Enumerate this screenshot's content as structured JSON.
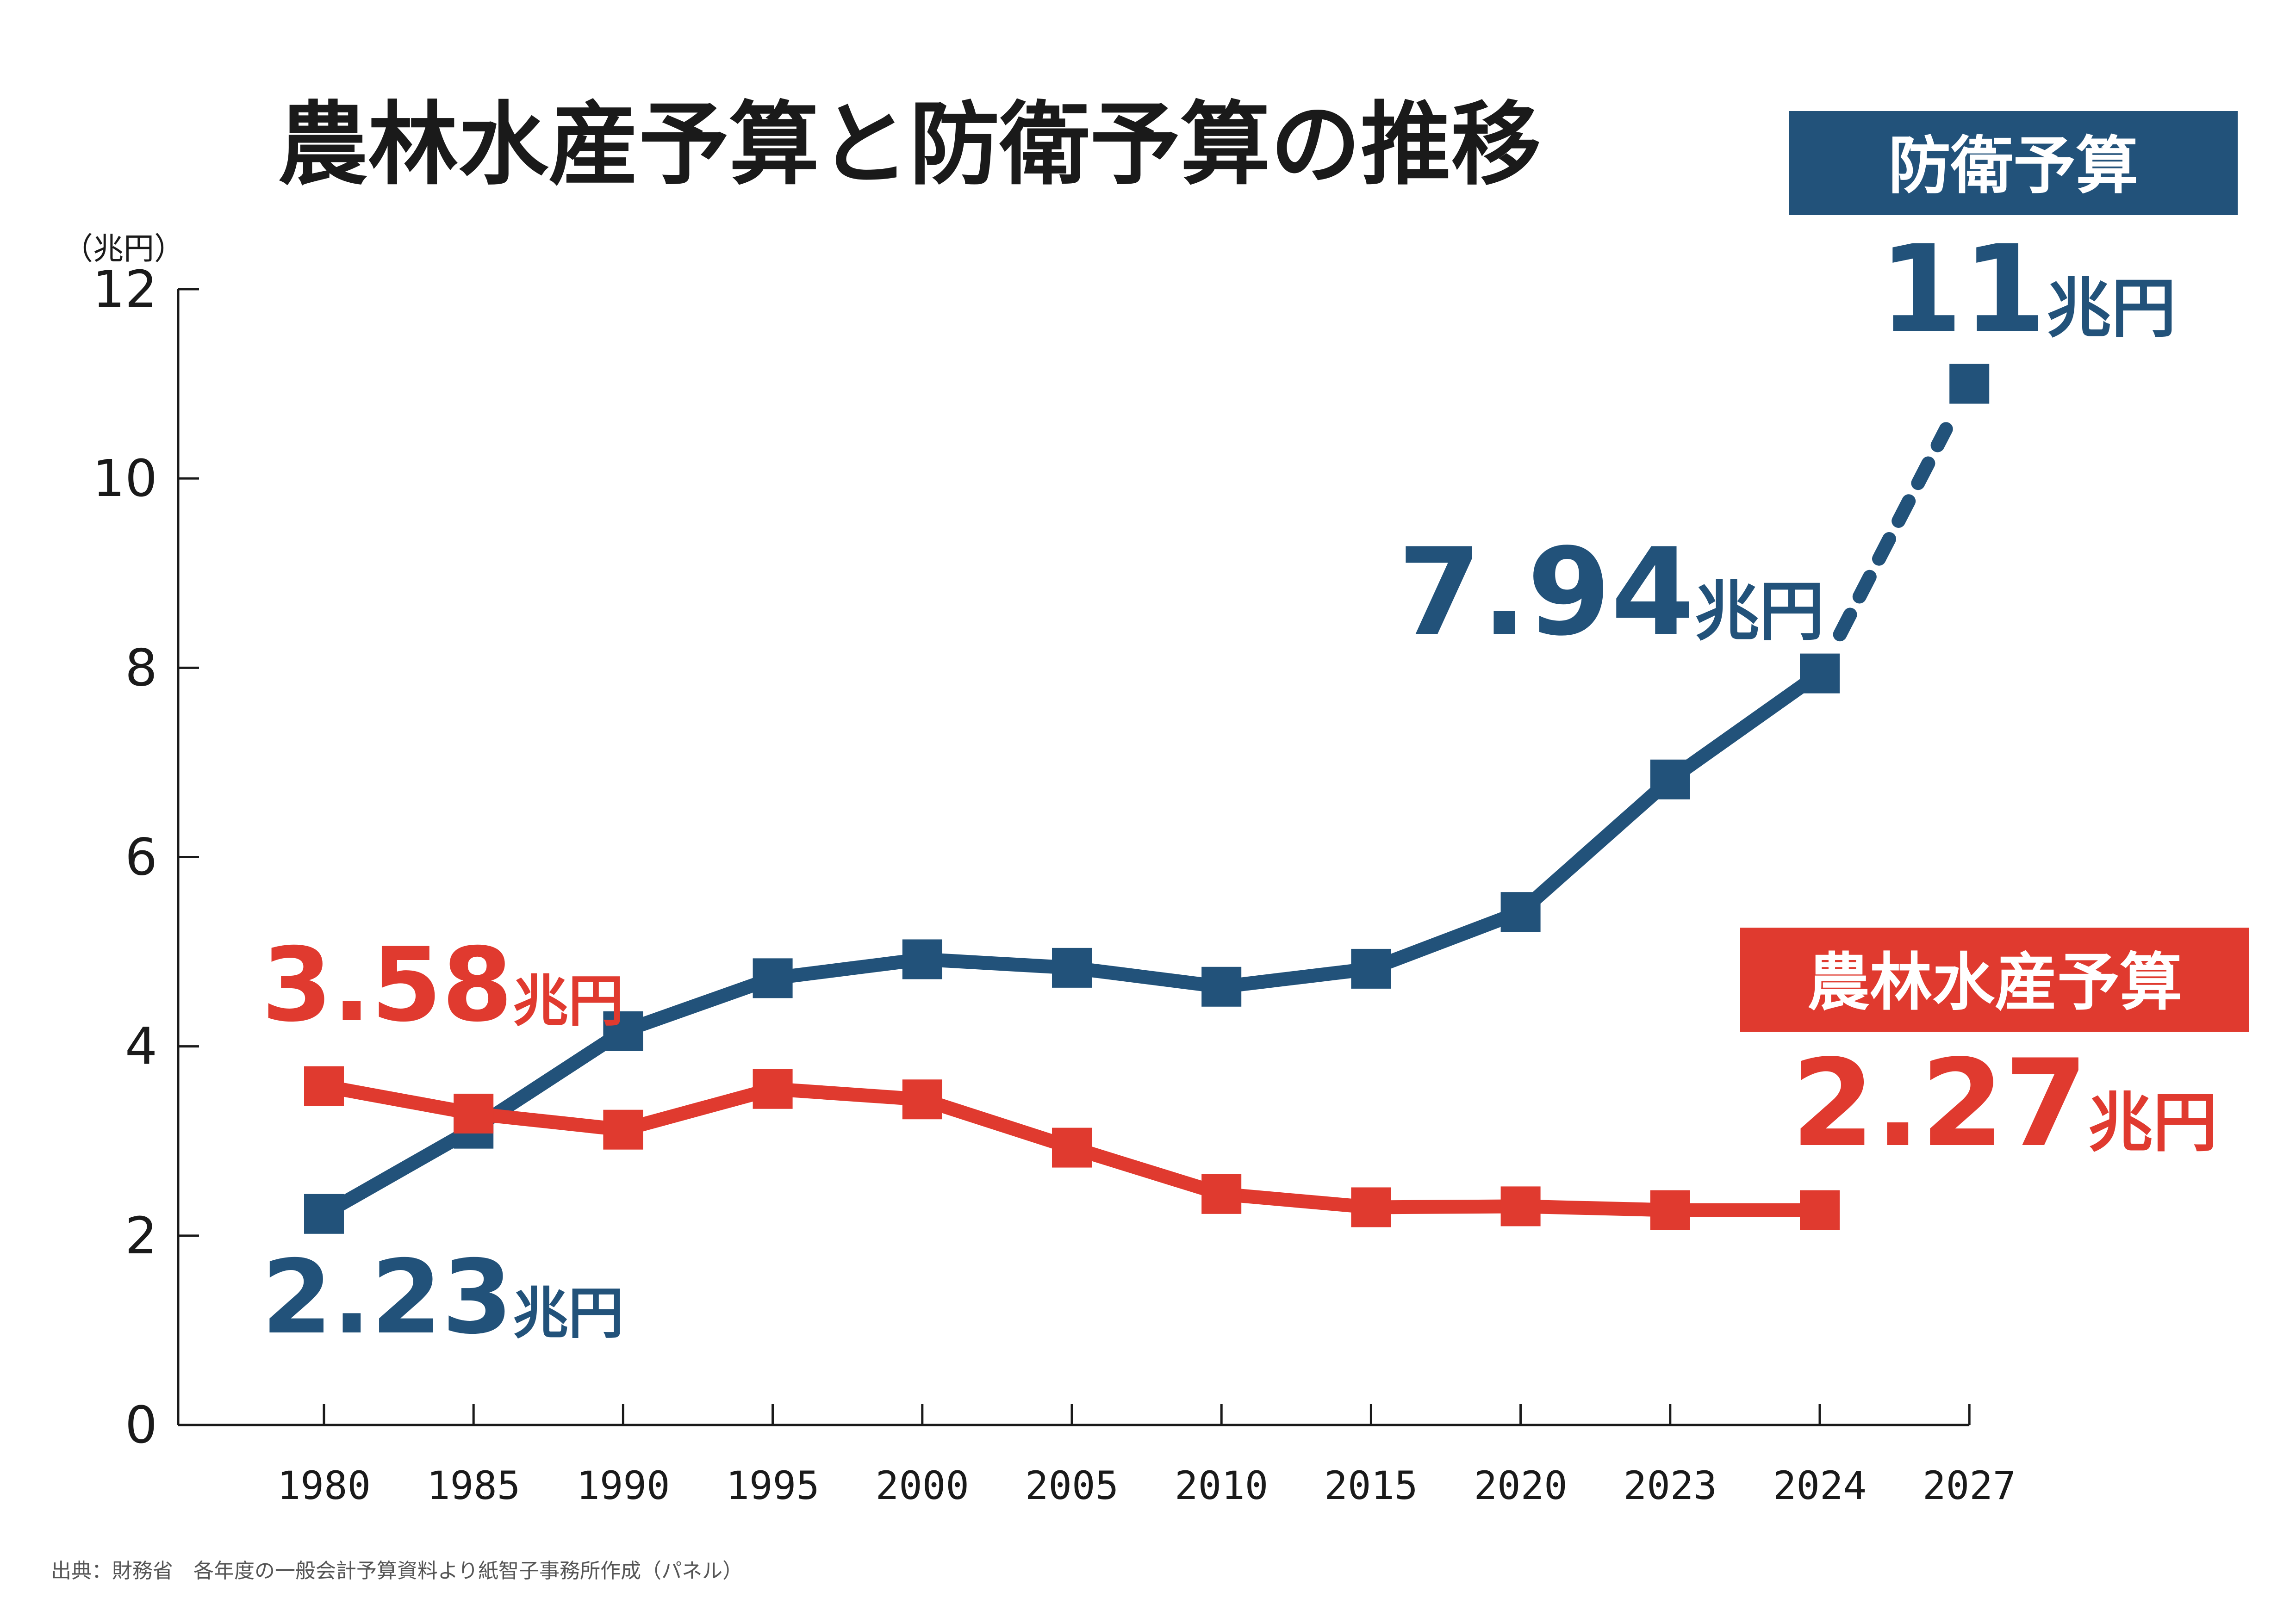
{
  "title": "農林水産予算と防衛予算の推移",
  "unit_label": "（兆円）",
  "source": "出典：財務省　各年度の一般会計予算資料より紙智子事務所作成（パネル）",
  "colors": {
    "defense": "#22527a",
    "agri": "#e03a2f",
    "axis": "#1a1a1a"
  },
  "chart_data": {
    "type": "line",
    "categories": [
      "1980",
      "1985",
      "1990",
      "1995",
      "2000",
      "2005",
      "2010",
      "2015",
      "2020",
      "2023",
      "2024",
      "2027"
    ],
    "ylim": [
      0,
      12
    ],
    "yticks": [
      "0",
      "2",
      "4",
      "6",
      "8",
      "10",
      "12"
    ],
    "series": [
      {
        "name": "防衛予算",
        "values": [
          2.23,
          3.13,
          4.16,
          4.72,
          4.92,
          4.83,
          4.63,
          4.82,
          5.42,
          6.82,
          7.94,
          11
        ],
        "dashed_from_index": 10
      },
      {
        "name": "農林水産予算",
        "values": [
          3.58,
          3.29,
          3.12,
          3.55,
          3.44,
          2.93,
          2.44,
          2.3,
          2.31,
          2.27,
          2.27,
          null
        ]
      }
    ],
    "annotations": {
      "defense_1980": {
        "num": "2.23",
        "suffix": "兆円"
      },
      "defense_2024": {
        "num": "7.94",
        "suffix": "兆円"
      },
      "defense_2027": {
        "num": "11",
        "suffix": "兆円"
      },
      "agri_1980": {
        "num": "3.58",
        "suffix": "兆円"
      },
      "agri_2024": {
        "num": "2.27",
        "suffix": "兆円"
      }
    }
  }
}
